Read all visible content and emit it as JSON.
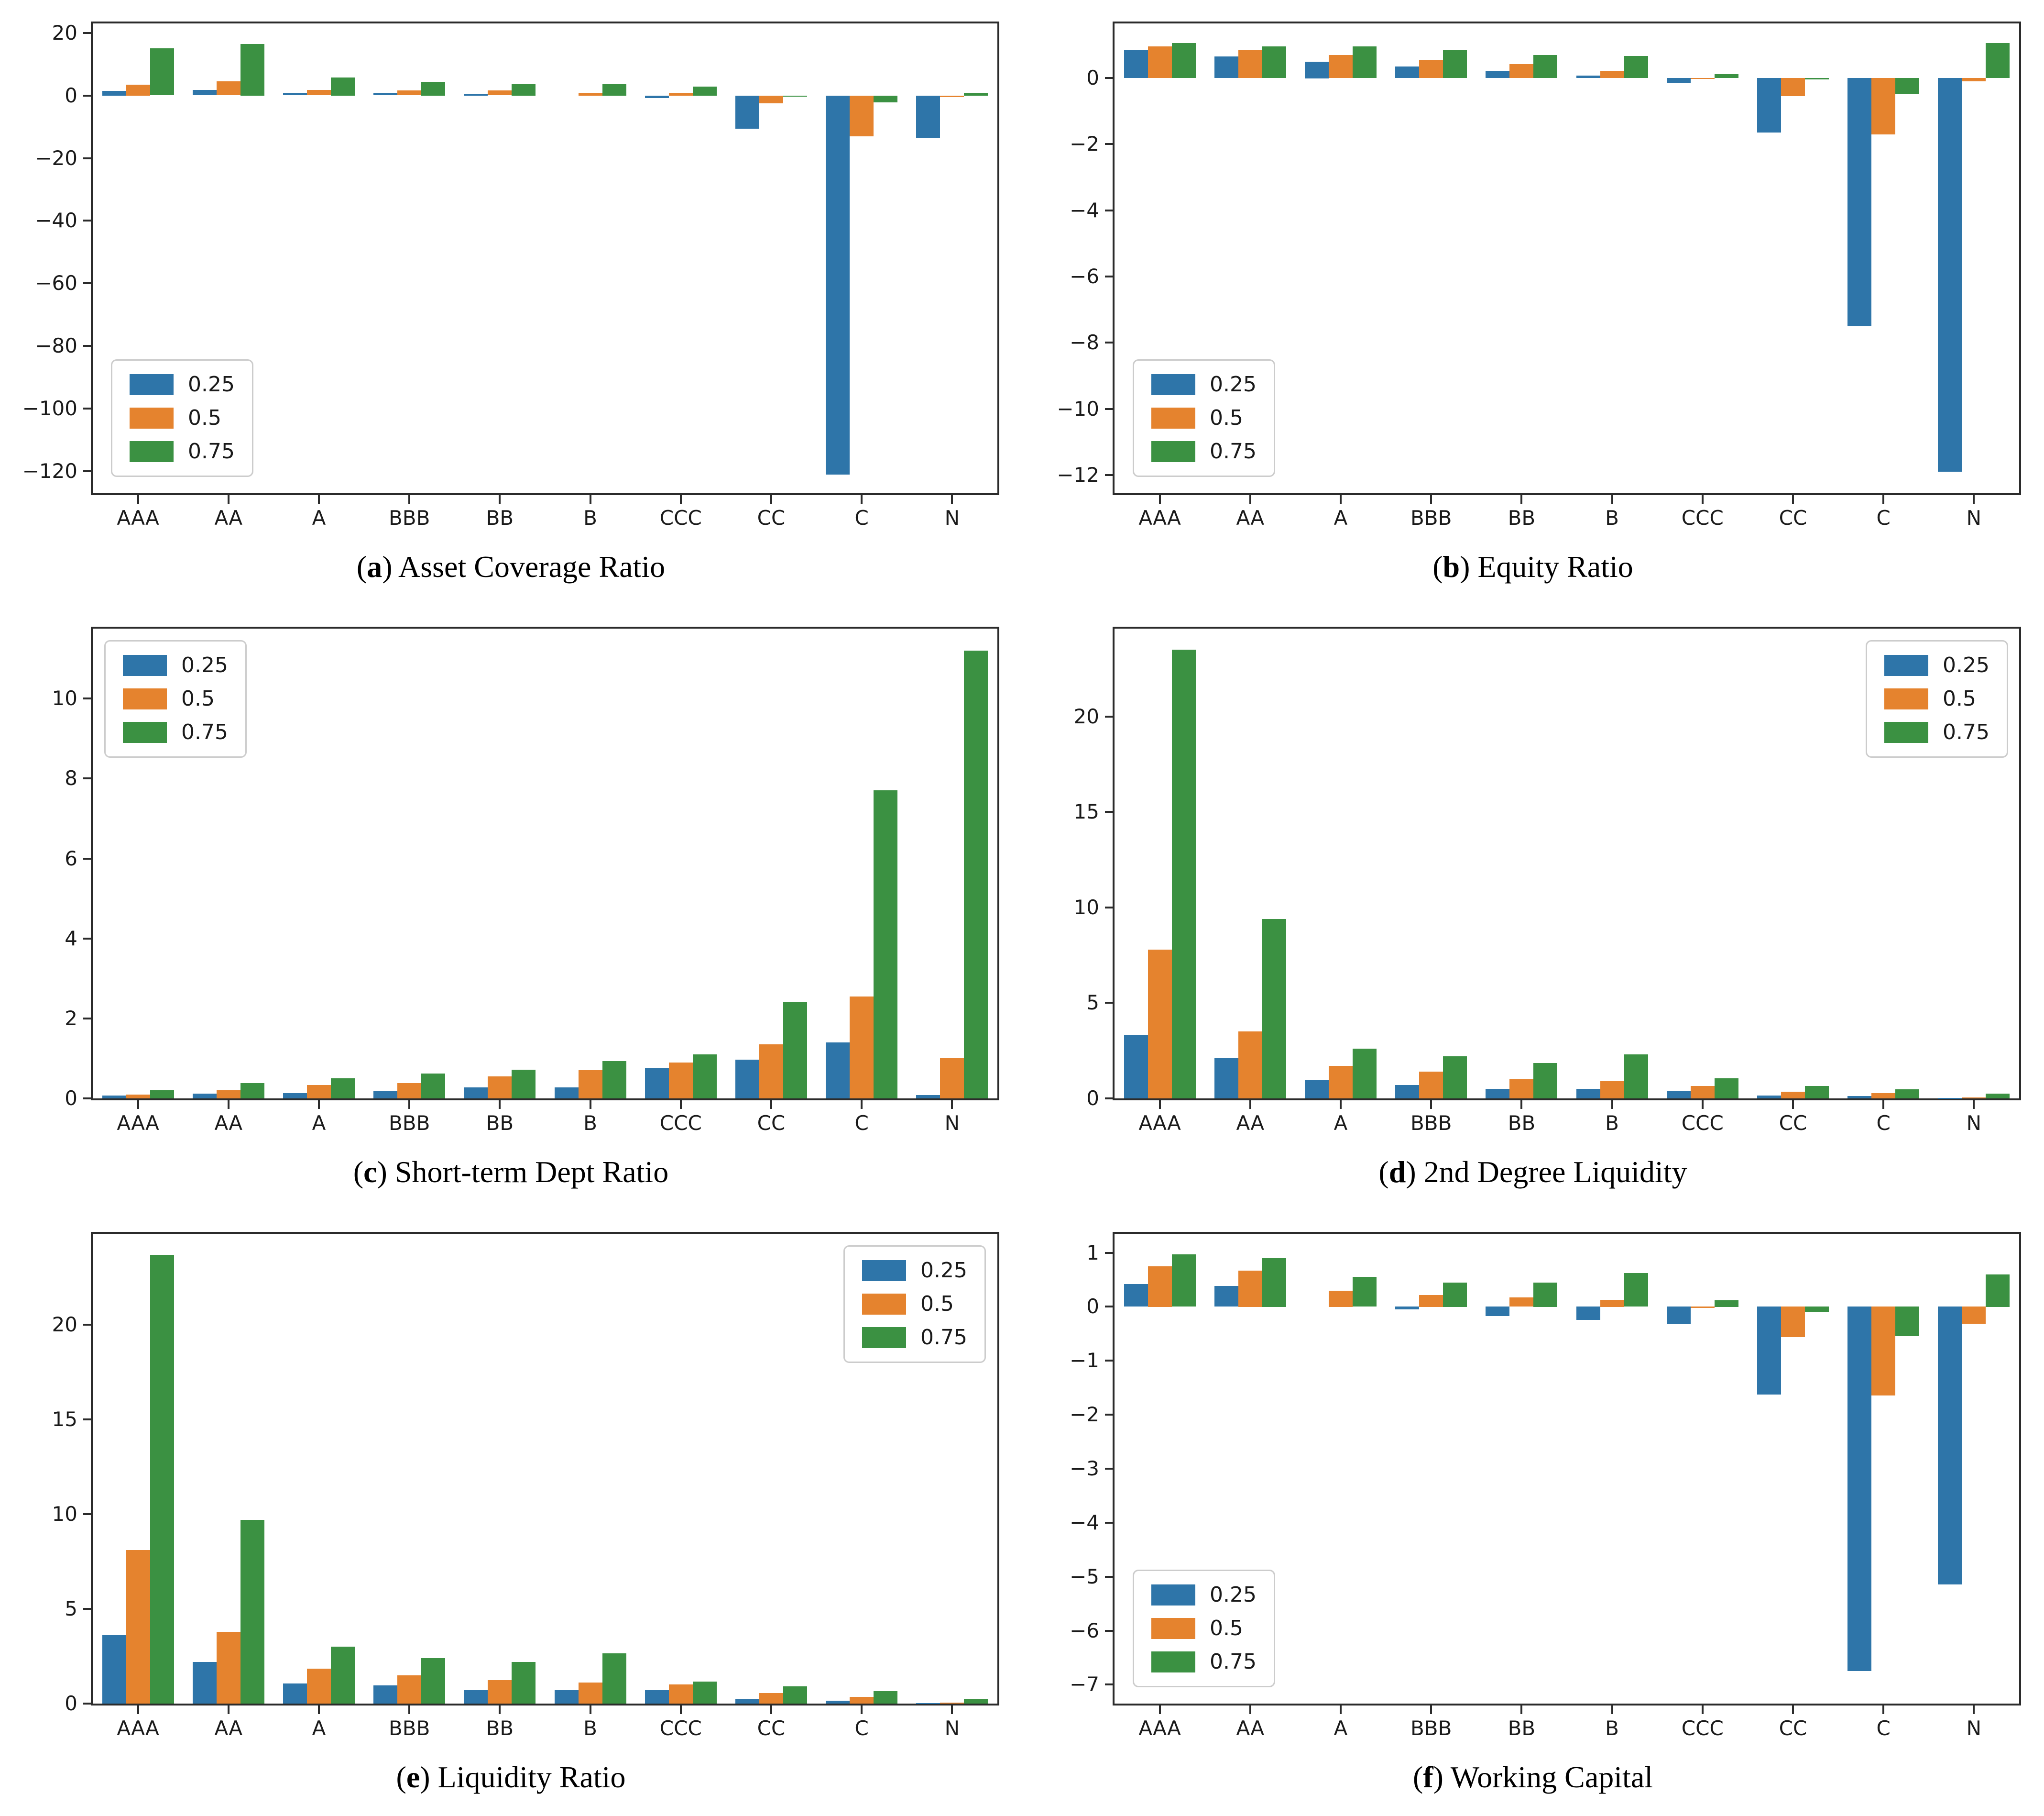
{
  "figure": {
    "categories": [
      "AAA",
      "AA",
      "A",
      "BBB",
      "BB",
      "B",
      "CCC",
      "CC",
      "C",
      "N"
    ],
    "legend_labels": [
      "0.25",
      "0.5",
      "0.75"
    ],
    "series_colors": [
      "#2e75a9",
      "#e5832e",
      "#3b9142"
    ],
    "spine_color": "#2b2b2b"
  },
  "chart_data": [
    {
      "type": "bar",
      "caption_letter": "a",
      "title": "Asset Coverage Ratio",
      "xlabel": "",
      "ylabel": "",
      "categories": [
        "AAA",
        "AA",
        "A",
        "BBB",
        "BB",
        "B",
        "CCC",
        "CC",
        "C",
        "N"
      ],
      "series": [
        {
          "name": "0.25",
          "values": [
            1.5,
            1.7,
            0.8,
            0.8,
            0.6,
            0.1,
            -0.7,
            -10.5,
            -121.0,
            -13.5
          ]
        },
        {
          "name": "0.5",
          "values": [
            3.5,
            4.5,
            1.7,
            1.6,
            1.6,
            0.9,
            0.9,
            -2.5,
            -13.0,
            -0.4
          ]
        },
        {
          "name": "0.75",
          "values": [
            15.0,
            16.5,
            5.8,
            4.4,
            3.6,
            3.6,
            2.9,
            -0.3,
            -2.2,
            0.9
          ]
        }
      ],
      "ylim": [
        -127,
        23
      ],
      "yticks": [
        20,
        0,
        -20,
        -40,
        -60,
        -80,
        -100,
        -120
      ],
      "grid": false,
      "legend_position": "lower-left"
    },
    {
      "type": "bar",
      "caption_letter": "b",
      "title": "Equity Ratio",
      "xlabel": "",
      "ylabel": "",
      "categories": [
        "AAA",
        "AA",
        "A",
        "BBB",
        "BB",
        "B",
        "CCC",
        "CC",
        "C",
        "N"
      ],
      "series": [
        {
          "name": "0.25",
          "values": [
            0.85,
            0.65,
            0.5,
            0.35,
            0.22,
            0.07,
            -0.15,
            -1.65,
            -7.5,
            -11.9
          ]
        },
        {
          "name": "0.5",
          "values": [
            0.95,
            0.85,
            0.7,
            0.55,
            0.42,
            0.22,
            -0.03,
            -0.55,
            -1.7,
            -0.1
          ]
        },
        {
          "name": "0.75",
          "values": [
            1.05,
            0.95,
            0.95,
            0.85,
            0.7,
            0.67,
            0.12,
            -0.05,
            -0.48,
            1.05
          ]
        }
      ],
      "ylim": [
        -12.55,
        1.65
      ],
      "yticks": [
        0,
        -2,
        -4,
        -6,
        -8,
        -10,
        -12
      ],
      "grid": false,
      "legend_position": "lower-left"
    },
    {
      "type": "bar",
      "caption_letter": "c",
      "title": "Short-term Dept Ratio",
      "xlabel": "",
      "ylabel": "",
      "categories": [
        "AAA",
        "AA",
        "A",
        "BBB",
        "BB",
        "B",
        "CCC",
        "CC",
        "C",
        "N"
      ],
      "series": [
        {
          "name": "0.25",
          "values": [
            0.07,
            0.12,
            0.13,
            0.18,
            0.28,
            0.28,
            0.75,
            0.97,
            1.4,
            0.08
          ]
        },
        {
          "name": "0.5",
          "values": [
            0.1,
            0.2,
            0.33,
            0.38,
            0.55,
            0.7,
            0.9,
            1.35,
            2.55,
            1.02
          ]
        },
        {
          "name": "0.75",
          "values": [
            0.2,
            0.38,
            0.5,
            0.62,
            0.72,
            0.93,
            1.1,
            2.4,
            7.7,
            11.2
          ]
        }
      ],
      "ylim": [
        0,
        11.75
      ],
      "yticks": [
        0,
        2,
        4,
        6,
        8,
        10
      ],
      "grid": false,
      "legend_position": "upper-left"
    },
    {
      "type": "bar",
      "caption_letter": "d",
      "title": "2nd Degree Liquidity",
      "xlabel": "",
      "ylabel": "",
      "categories": [
        "AAA",
        "AA",
        "A",
        "BBB",
        "BB",
        "B",
        "CCC",
        "CC",
        "C",
        "N"
      ],
      "series": [
        {
          "name": "0.25",
          "values": [
            3.3,
            2.1,
            0.95,
            0.7,
            0.5,
            0.5,
            0.4,
            0.15,
            0.12,
            0.03
          ]
        },
        {
          "name": "0.5",
          "values": [
            7.8,
            3.5,
            1.7,
            1.4,
            1.0,
            0.9,
            0.65,
            0.35,
            0.28,
            0.05
          ]
        },
        {
          "name": "0.75",
          "values": [
            23.5,
            9.4,
            2.6,
            2.2,
            1.85,
            2.3,
            1.05,
            0.65,
            0.48,
            0.25
          ]
        }
      ],
      "ylim": [
        0,
        24.6
      ],
      "yticks": [
        0,
        5,
        10,
        15,
        20
      ],
      "grid": false,
      "legend_position": "upper-right"
    },
    {
      "type": "bar",
      "caption_letter": "e",
      "title": "Liquidity Ratio",
      "xlabel": "",
      "ylabel": "",
      "categories": [
        "AAA",
        "AA",
        "A",
        "BBB",
        "BB",
        "B",
        "CCC",
        "CC",
        "C",
        "N"
      ],
      "series": [
        {
          "name": "0.25",
          "values": [
            3.6,
            2.2,
            1.05,
            0.95,
            0.7,
            0.7,
            0.7,
            0.25,
            0.15,
            0.03
          ]
        },
        {
          "name": "0.5",
          "values": [
            8.1,
            3.8,
            1.85,
            1.5,
            1.25,
            1.1,
            1.0,
            0.55,
            0.35,
            0.05
          ]
        },
        {
          "name": "0.75",
          "values": [
            23.7,
            9.7,
            3.0,
            2.4,
            2.2,
            2.65,
            1.15,
            0.9,
            0.65,
            0.25
          ]
        }
      ],
      "ylim": [
        0,
        24.8
      ],
      "yticks": [
        0,
        5,
        10,
        15,
        20
      ],
      "grid": false,
      "legend_position": "upper-right"
    },
    {
      "type": "bar",
      "caption_letter": "f",
      "title": "Working Capital",
      "xlabel": "",
      "ylabel": "",
      "categories": [
        "AAA",
        "AA",
        "A",
        "BBB",
        "BB",
        "B",
        "CCC",
        "CC",
        "C",
        "N"
      ],
      "series": [
        {
          "name": "0.25",
          "values": [
            0.42,
            0.38,
            0.0,
            -0.05,
            -0.18,
            -0.25,
            -0.33,
            -1.63,
            -6.75,
            -5.15
          ]
        },
        {
          "name": "0.5",
          "values": [
            0.75,
            0.67,
            0.3,
            0.22,
            0.17,
            0.13,
            -0.03,
            -0.57,
            -1.65,
            -0.32
          ]
        },
        {
          "name": "0.75",
          "values": [
            0.97,
            0.9,
            0.55,
            0.45,
            0.45,
            0.62,
            0.12,
            -0.1,
            -0.55,
            0.6
          ]
        }
      ],
      "ylim": [
        -7.35,
        1.35
      ],
      "yticks": [
        1,
        0,
        -1,
        -2,
        -3,
        -4,
        -5,
        -6,
        -7
      ],
      "grid": false,
      "legend_position": "lower-left"
    }
  ]
}
